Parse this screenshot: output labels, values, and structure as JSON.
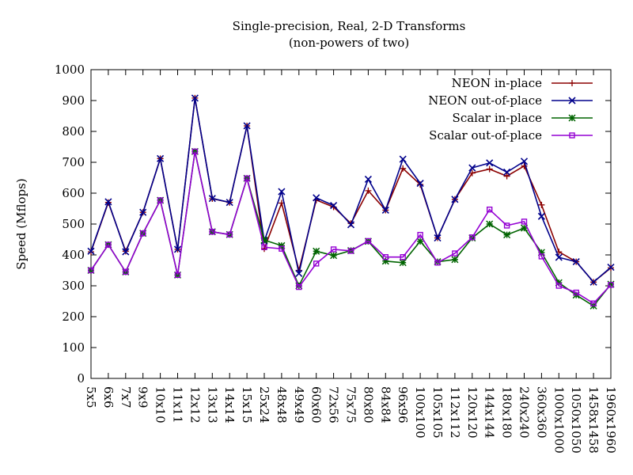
{
  "chart_data": {
    "type": "line",
    "title": "Single-precision, Real, 2-D Transforms",
    "subtitle": "(non-powers of two)",
    "xlabel": "",
    "ylabel": "Speed (Mflops)",
    "ylim": [
      0,
      1000
    ],
    "yticks": [
      0,
      100,
      200,
      300,
      400,
      500,
      600,
      700,
      800,
      900,
      1000
    ],
    "legend_position": "top-right",
    "grid": false,
    "categories": [
      "5x5",
      "6x6",
      "7x7",
      "9x9",
      "10x10",
      "11x11",
      "12x12",
      "13x13",
      "14x14",
      "15x15",
      "25x24",
      "48x48",
      "49x49",
      "60x60",
      "72x56",
      "75x75",
      "80x80",
      "84x84",
      "96x96",
      "100x100",
      "105x105",
      "112x112",
      "120x120",
      "144x144",
      "180x180",
      "240x240",
      "360x360",
      "1000x1000",
      "1050x1050",
      "1458x1458",
      "1960x1960"
    ],
    "series": [
      {
        "name": "NEON in-place",
        "color": "#8b0000",
        "marker": "plus",
        "values": [
          410,
          570,
          412,
          538,
          712,
          418,
          908,
          582,
          570,
          818,
          420,
          568,
          350,
          578,
          555,
          502,
          608,
          545,
          680,
          628,
          455,
          580,
          665,
          678,
          655,
          688,
          562,
          410,
          378,
          312,
          358
        ]
      },
      {
        "name": "NEON out-of-place",
        "color": "#00008b",
        "marker": "x",
        "values": [
          412,
          572,
          410,
          538,
          712,
          418,
          908,
          583,
          570,
          818,
          445,
          605,
          340,
          585,
          560,
          498,
          645,
          545,
          710,
          632,
          455,
          580,
          682,
          698,
          668,
          703,
          525,
          392,
          378,
          312,
          360
        ]
      },
      {
        "name": "Scalar in-place",
        "color": "#006400",
        "marker": "star",
        "values": [
          350,
          433,
          345,
          470,
          577,
          335,
          735,
          475,
          466,
          648,
          448,
          430,
          300,
          412,
          398,
          414,
          444,
          380,
          375,
          444,
          378,
          385,
          455,
          500,
          465,
          487,
          408,
          310,
          270,
          235,
          305
        ]
      },
      {
        "name": "Scalar out-of-place",
        "color": "#9400d3",
        "marker": "box",
        "values": [
          350,
          433,
          345,
          470,
          577,
          335,
          735,
          475,
          466,
          648,
          425,
          420,
          296,
          372,
          418,
          413,
          445,
          393,
          393,
          465,
          375,
          405,
          457,
          547,
          495,
          508,
          395,
          300,
          278,
          243,
          303
        ]
      }
    ]
  }
}
